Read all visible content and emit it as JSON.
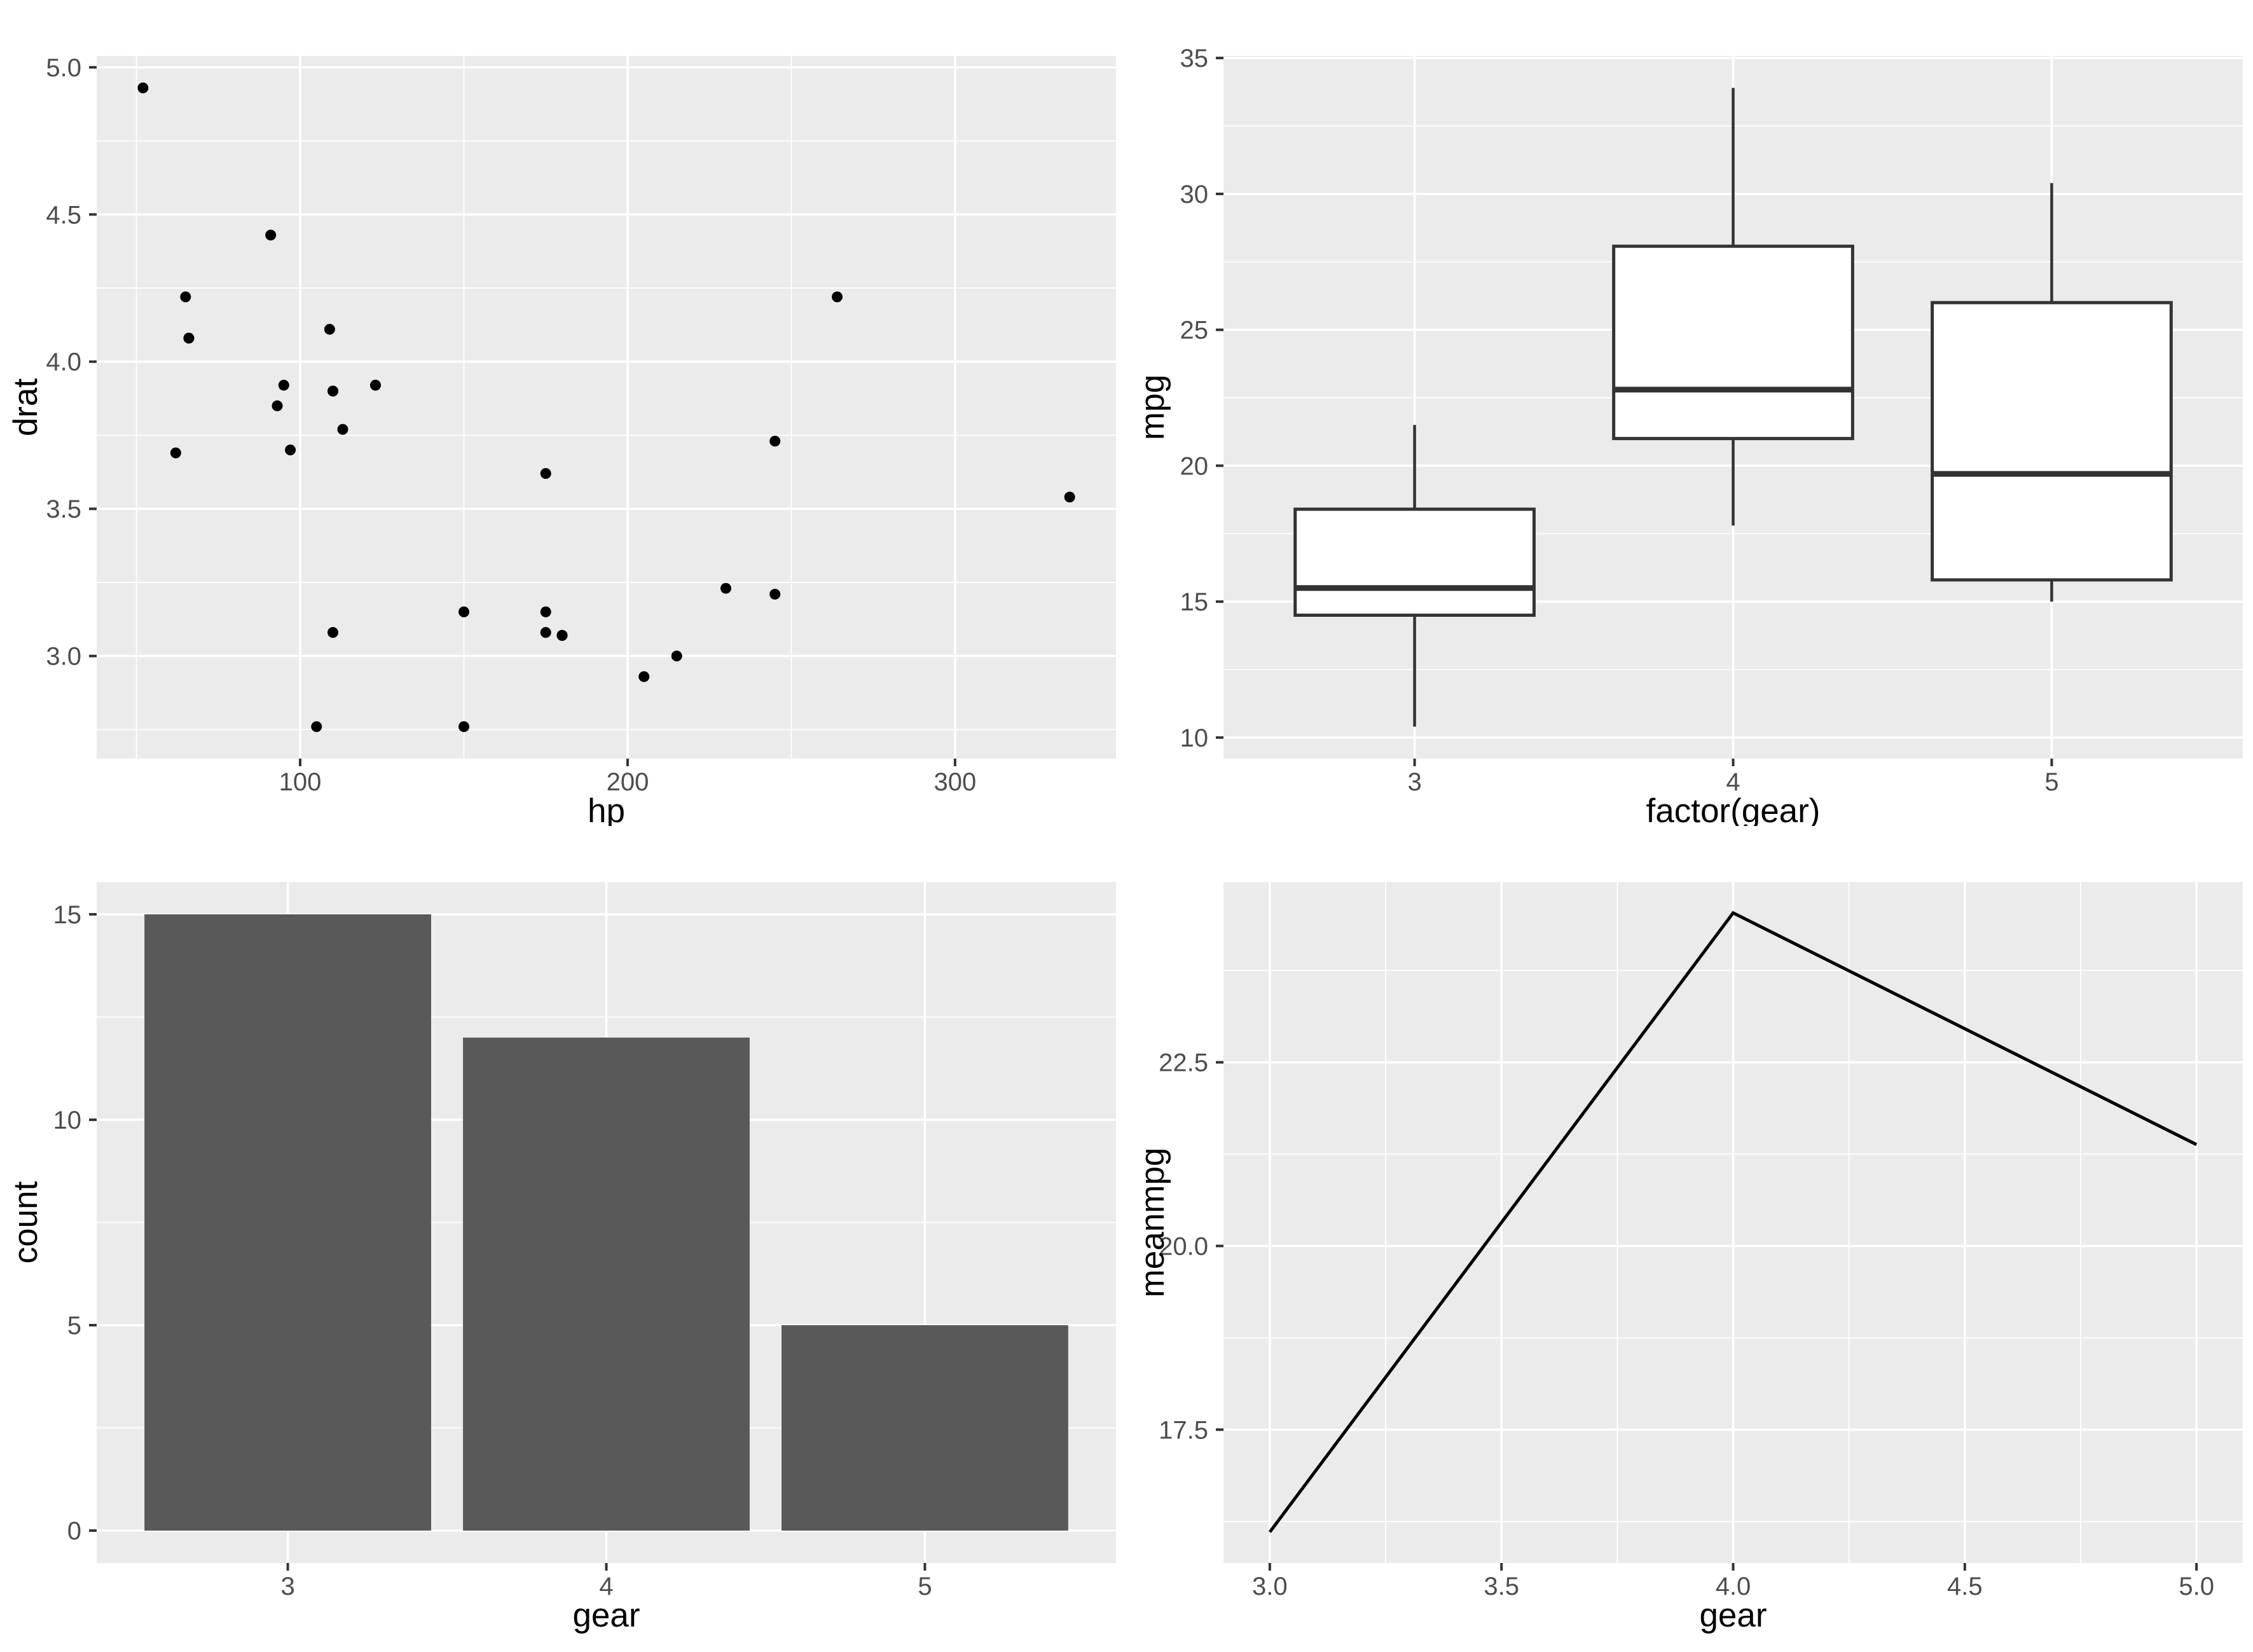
{
  "figure": {
    "background_color": "#FFFFFF",
    "panel_background_color": "#EBEBEB",
    "grid_color": "#FFFFFF",
    "tick_text_color": "#4D4D4D",
    "axis_title_color": "#000000",
    "tick_mark_color": "#333333"
  },
  "chart_data": [
    {
      "id": "scatter-drat-vs-hp",
      "type": "scatter",
      "xlabel": "hp",
      "ylabel": "drat",
      "xlim": [
        37.85,
        349.15
      ],
      "ylim": [
        2.6515,
        5.0385
      ],
      "x_ticks": [
        100,
        200,
        300
      ],
      "x_tick_labels": [
        "100",
        "200",
        "300"
      ],
      "x_minor": [
        50,
        150,
        250
      ],
      "y_ticks": [
        3.0,
        3.5,
        4.0,
        4.5,
        5.0
      ],
      "y_tick_labels": [
        "3.0",
        "3.5",
        "4.0",
        "4.5",
        "5.0"
      ],
      "y_minor": [
        2.75,
        3.25,
        3.75,
        4.25,
        4.75
      ],
      "point_color": "#000000",
      "points": [
        [
          110,
          3.9
        ],
        [
          110,
          3.9
        ],
        [
          93,
          3.85
        ],
        [
          110,
          3.08
        ],
        [
          175,
          3.15
        ],
        [
          105,
          2.76
        ],
        [
          245,
          3.21
        ],
        [
          62,
          3.69
        ],
        [
          95,
          3.92
        ],
        [
          123,
          3.92
        ],
        [
          123,
          3.92
        ],
        [
          180,
          3.07
        ],
        [
          180,
          3.07
        ],
        [
          180,
          3.07
        ],
        [
          205,
          2.93
        ],
        [
          215,
          3.0
        ],
        [
          230,
          3.23
        ],
        [
          66,
          4.08
        ],
        [
          52,
          4.93
        ],
        [
          65,
          4.22
        ],
        [
          97,
          3.7
        ],
        [
          150,
          2.76
        ],
        [
          150,
          3.15
        ],
        [
          245,
          3.73
        ],
        [
          175,
          3.08
        ],
        [
          66,
          4.08
        ],
        [
          91,
          4.43
        ],
        [
          113,
          3.77
        ],
        [
          264,
          4.22
        ],
        [
          175,
          3.62
        ],
        [
          335,
          3.54
        ],
        [
          109,
          4.11
        ]
      ]
    },
    {
      "id": "boxplot-mpg-by-gear",
      "type": "box",
      "xlabel": "factor(gear)",
      "ylabel": "mpg",
      "categories": [
        "3",
        "4",
        "5"
      ],
      "ylim": [
        9.225,
        35.075
      ],
      "y_ticks": [
        10,
        15,
        20,
        25,
        30,
        35
      ],
      "y_tick_labels": [
        "10",
        "15",
        "20",
        "25",
        "30",
        "35"
      ],
      "y_minor": [
        12.5,
        17.5,
        22.5,
        27.5,
        32.5
      ],
      "box_color": "#333333",
      "box_fill": "#FFFFFF",
      "stats": [
        {
          "category": "3",
          "whisker_low": 10.4,
          "q1": 14.5,
          "median": 15.5,
          "q3": 18.4,
          "whisker_high": 21.5
        },
        {
          "category": "4",
          "whisker_low": 17.8,
          "q1": 21.0,
          "median": 22.8,
          "q3": 28.075,
          "whisker_high": 33.9
        },
        {
          "category": "5",
          "whisker_low": 15.0,
          "q1": 15.8,
          "median": 19.7,
          "q3": 26.0,
          "whisker_high": 30.4
        }
      ]
    },
    {
      "id": "bar-count-by-gear",
      "type": "bar",
      "xlabel": "gear",
      "ylabel": "count",
      "categories": [
        "3",
        "4",
        "5"
      ],
      "values": [
        15,
        12,
        5
      ],
      "ylim": [
        -0.7875,
        15.7875
      ],
      "y_ticks": [
        0,
        5,
        10,
        15
      ],
      "y_tick_labels": [
        "0",
        "5",
        "10",
        "15"
      ],
      "y_minor": [
        2.5,
        7.5,
        12.5
      ],
      "bar_fill": "#595959"
    },
    {
      "id": "line-meanmpg-by-gear",
      "type": "line",
      "xlabel": "gear",
      "ylabel": "meanmpg",
      "x": [
        3,
        4,
        5
      ],
      "y": [
        16.1067,
        24.5333,
        21.38
      ],
      "xlim": [
        2.9,
        5.1
      ],
      "ylim": [
        15.6853,
        24.9547
      ],
      "x_ticks": [
        3.0,
        3.5,
        4.0,
        4.5,
        5.0
      ],
      "x_tick_labels": [
        "3.0",
        "3.5",
        "4.0",
        "4.5",
        "5.0"
      ],
      "x_minor": [
        3.25,
        3.75,
        4.25,
        4.75
      ],
      "y_ticks": [
        17.5,
        20.0,
        22.5
      ],
      "y_tick_labels": [
        "17.5",
        "20.0",
        "22.5"
      ],
      "y_minor": [
        16.25,
        18.75,
        21.25,
        23.75
      ],
      "line_color": "#000000"
    }
  ]
}
